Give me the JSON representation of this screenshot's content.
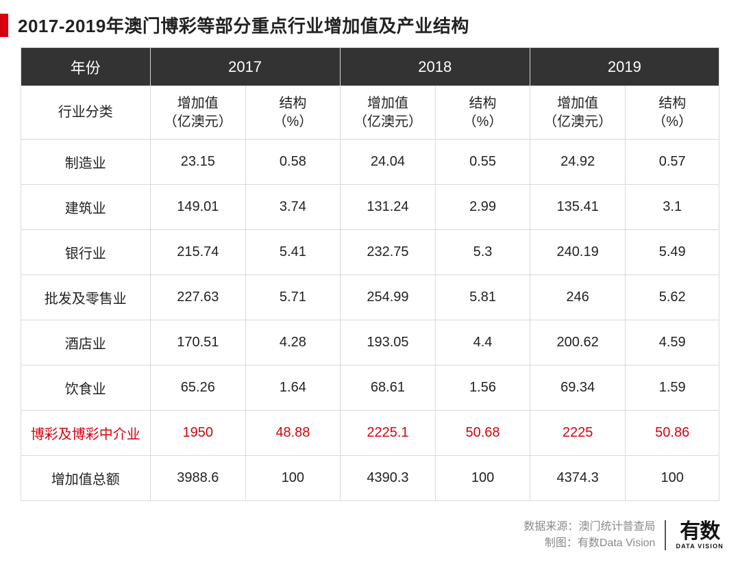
{
  "title": "2017-2019年澳门博彩等部分重点行业增加值及产业结构",
  "colors": {
    "accent_red": "#d6000f",
    "header_bg": "#333333",
    "header_text": "#ffffff",
    "border": "#d9d9d9",
    "text": "#222222",
    "footer_text": "#8a8a8a"
  },
  "table": {
    "corner_label": "年份",
    "row_header_label": "行业分类",
    "years": [
      "2017",
      "2018",
      "2019"
    ],
    "sub_headers": {
      "value": "增加值\n（亿澳元）",
      "pct": "结构\n（%）"
    },
    "rows": [
      {
        "label": "制造业",
        "v2017": "23.15",
        "p2017": "0.58",
        "v2018": "24.04",
        "p2018": "0.55",
        "v2019": "24.92",
        "p2019": "0.57",
        "highlight": false
      },
      {
        "label": "建筑业",
        "v2017": "149.01",
        "p2017": "3.74",
        "v2018": "131.24",
        "p2018": "2.99",
        "v2019": "135.41",
        "p2019": "3.1",
        "highlight": false
      },
      {
        "label": "银行业",
        "v2017": "215.74",
        "p2017": "5.41",
        "v2018": "232.75",
        "p2018": "5.3",
        "v2019": "240.19",
        "p2019": "5.49",
        "highlight": false
      },
      {
        "label": "批发及零售业",
        "v2017": "227.63",
        "p2017": "5.71",
        "v2018": "254.99",
        "p2018": "5.81",
        "v2019": "246",
        "p2019": "5.62",
        "highlight": false
      },
      {
        "label": "酒店业",
        "v2017": "170.51",
        "p2017": "4.28",
        "v2018": "193.05",
        "p2018": "4.4",
        "v2019": "200.62",
        "p2019": "4.59",
        "highlight": false
      },
      {
        "label": "饮食业",
        "v2017": "65.26",
        "p2017": "1.64",
        "v2018": "68.61",
        "p2018": "1.56",
        "v2019": "69.34",
        "p2019": "1.59",
        "highlight": false
      },
      {
        "label": "博彩及博彩中介业",
        "v2017": "1950",
        "p2017": "48.88",
        "v2018": "2225.1",
        "p2018": "50.68",
        "v2019": "2225",
        "p2019": "50.86",
        "highlight": true
      },
      {
        "label": "增加值总额",
        "v2017": "3988.6",
        "p2017": "100",
        "v2018": "4390.3",
        "p2018": "100",
        "v2019": "4374.3",
        "p2019": "100",
        "highlight": false
      }
    ]
  },
  "footer": {
    "source_label": "数据来源：",
    "source_value": "澳门统计普查局",
    "chart_label": "制图：",
    "chart_value": "有数Data Vision",
    "logo_cn": "有数",
    "logo_en": "DATA VISION"
  }
}
